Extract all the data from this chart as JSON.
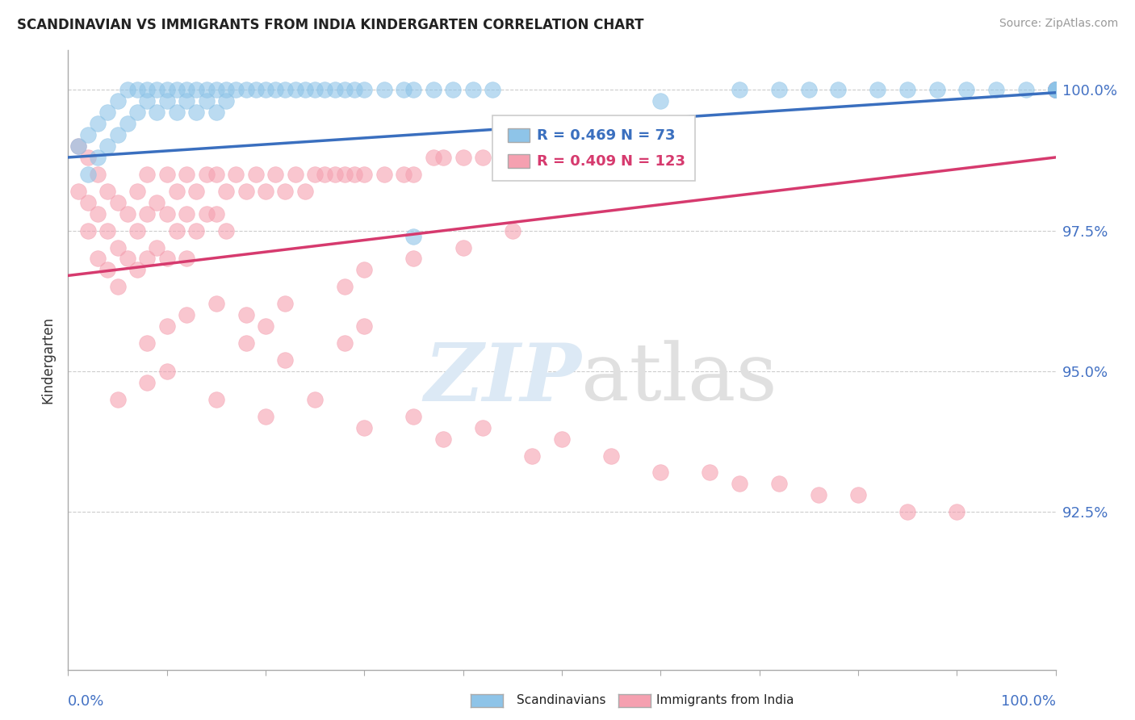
{
  "title": "SCANDINAVIAN VS IMMIGRANTS FROM INDIA KINDERGARTEN CORRELATION CHART",
  "source": "Source: ZipAtlas.com",
  "ylabel": "Kindergarten",
  "ytick_labels": [
    "92.5%",
    "95.0%",
    "97.5%",
    "100.0%"
  ],
  "ytick_values": [
    0.925,
    0.95,
    0.975,
    1.0
  ],
  "legend_entry1_r": "R = 0.469",
  "legend_entry1_n": "N = 73",
  "legend_entry2_r": "R = 0.409",
  "legend_entry2_n": "N = 123",
  "blue_scatter_color": "#8ec4e8",
  "pink_scatter_color": "#f5a0b0",
  "blue_line_color": "#3a6fbf",
  "pink_line_color": "#d63a6e",
  "background_color": "#ffffff",
  "grid_color": "#cccccc",
  "axis_color": "#aaaaaa",
  "label_color": "#4472c4",
  "blue_x": [
    0.01,
    0.02,
    0.02,
    0.03,
    0.03,
    0.04,
    0.04,
    0.05,
    0.05,
    0.06,
    0.06,
    0.07,
    0.07,
    0.08,
    0.08,
    0.09,
    0.09,
    0.1,
    0.1,
    0.11,
    0.11,
    0.12,
    0.12,
    0.13,
    0.13,
    0.14,
    0.14,
    0.15,
    0.15,
    0.16,
    0.16,
    0.17,
    0.18,
    0.19,
    0.2,
    0.21,
    0.22,
    0.23,
    0.24,
    0.25,
    0.26,
    0.27,
    0.28,
    0.29,
    0.3,
    0.32,
    0.34,
    0.35,
    0.37,
    0.39,
    0.41,
    0.43,
    0.35,
    0.6,
    0.68,
    0.72,
    0.75,
    0.78,
    0.82,
    0.85,
    0.88,
    0.91,
    0.94,
    0.97,
    1.0,
    1.0,
    1.0,
    1.0,
    1.0,
    1.0,
    1.0,
    1.0,
    1.0
  ],
  "blue_y": [
    0.99,
    0.985,
    0.992,
    0.988,
    0.994,
    0.99,
    0.996,
    0.992,
    0.998,
    0.994,
    1.0,
    0.996,
    1.0,
    0.998,
    1.0,
    0.996,
    1.0,
    0.998,
    1.0,
    0.996,
    1.0,
    0.998,
    1.0,
    0.996,
    1.0,
    0.998,
    1.0,
    0.996,
    1.0,
    0.998,
    1.0,
    1.0,
    1.0,
    1.0,
    1.0,
    1.0,
    1.0,
    1.0,
    1.0,
    1.0,
    1.0,
    1.0,
    1.0,
    1.0,
    1.0,
    1.0,
    1.0,
    1.0,
    1.0,
    1.0,
    1.0,
    1.0,
    0.974,
    0.998,
    1.0,
    1.0,
    1.0,
    1.0,
    1.0,
    1.0,
    1.0,
    1.0,
    1.0,
    1.0,
    1.0,
    1.0,
    1.0,
    1.0,
    1.0,
    1.0,
    1.0,
    1.0,
    1.0
  ],
  "pink_x": [
    0.01,
    0.01,
    0.02,
    0.02,
    0.02,
    0.03,
    0.03,
    0.03,
    0.04,
    0.04,
    0.04,
    0.05,
    0.05,
    0.05,
    0.06,
    0.06,
    0.07,
    0.07,
    0.07,
    0.08,
    0.08,
    0.08,
    0.09,
    0.09,
    0.1,
    0.1,
    0.1,
    0.11,
    0.11,
    0.12,
    0.12,
    0.12,
    0.13,
    0.13,
    0.14,
    0.14,
    0.15,
    0.15,
    0.16,
    0.16,
    0.17,
    0.18,
    0.19,
    0.2,
    0.21,
    0.22,
    0.23,
    0.24,
    0.25,
    0.26,
    0.27,
    0.28,
    0.29,
    0.3,
    0.32,
    0.34,
    0.35,
    0.37,
    0.38,
    0.4,
    0.42,
    0.44,
    0.46,
    0.18,
    0.22,
    0.28,
    0.3,
    0.35,
    0.4,
    0.45,
    0.08,
    0.1,
    0.12,
    0.15,
    0.18,
    0.2,
    0.22,
    0.28,
    0.3,
    0.05,
    0.08,
    0.1,
    0.15,
    0.2,
    0.25,
    0.3,
    0.35,
    0.38,
    0.42,
    0.47,
    0.5,
    0.55,
    0.6,
    0.65,
    0.68,
    0.72,
    0.76,
    0.8,
    0.85,
    0.9,
    1.0,
    1.0,
    1.0,
    1.0,
    1.0,
    1.0,
    1.0,
    1.0,
    1.0,
    1.0,
    1.0,
    1.0,
    1.0,
    1.0,
    1.0,
    1.0,
    1.0,
    1.0,
    1.0,
    1.0,
    1.0,
    1.0,
    1.0
  ],
  "pink_y": [
    0.99,
    0.982,
    0.988,
    0.98,
    0.975,
    0.985,
    0.978,
    0.97,
    0.982,
    0.975,
    0.968,
    0.98,
    0.972,
    0.965,
    0.978,
    0.97,
    0.982,
    0.975,
    0.968,
    0.985,
    0.978,
    0.97,
    0.98,
    0.972,
    0.985,
    0.978,
    0.97,
    0.982,
    0.975,
    0.985,
    0.978,
    0.97,
    0.982,
    0.975,
    0.985,
    0.978,
    0.985,
    0.978,
    0.982,
    0.975,
    0.985,
    0.982,
    0.985,
    0.982,
    0.985,
    0.982,
    0.985,
    0.982,
    0.985,
    0.985,
    0.985,
    0.985,
    0.985,
    0.985,
    0.985,
    0.985,
    0.985,
    0.988,
    0.988,
    0.988,
    0.988,
    0.988,
    0.988,
    0.96,
    0.962,
    0.965,
    0.968,
    0.97,
    0.972,
    0.975,
    0.955,
    0.958,
    0.96,
    0.962,
    0.955,
    0.958,
    0.952,
    0.955,
    0.958,
    0.945,
    0.948,
    0.95,
    0.945,
    0.942,
    0.945,
    0.94,
    0.942,
    0.938,
    0.94,
    0.935,
    0.938,
    0.935,
    0.932,
    0.932,
    0.93,
    0.93,
    0.928,
    0.928,
    0.925,
    0.925,
    1.0,
    1.0,
    1.0,
    1.0,
    1.0,
    1.0,
    1.0,
    1.0,
    1.0,
    1.0,
    1.0,
    1.0,
    1.0,
    1.0,
    1.0,
    1.0,
    1.0,
    1.0,
    1.0,
    1.0,
    1.0,
    1.0,
    1.0
  ],
  "blue_trend_x0": 0.0,
  "blue_trend_x1": 1.0,
  "blue_trend_y0": 0.988,
  "blue_trend_y1": 0.9995,
  "pink_trend_x0": 0.0,
  "pink_trend_x1": 1.0,
  "pink_trend_y0": 0.967,
  "pink_trend_y1": 0.988,
  "ylim_min": 0.897,
  "ylim_max": 1.007,
  "xlim_min": 0.0,
  "xlim_max": 1.0
}
